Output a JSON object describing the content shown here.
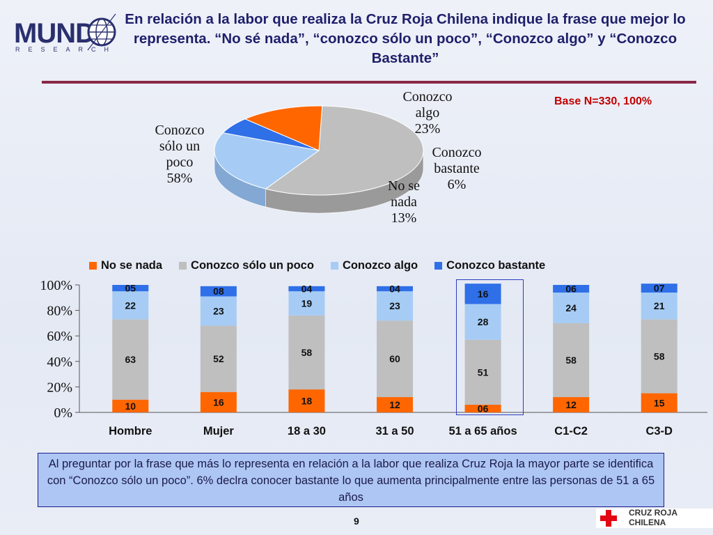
{
  "logo": {
    "word": "MUND",
    "sub": "RESEARCH"
  },
  "title": "En relación a la labor que realiza la Cruz Roja Chilena indique la frase que mejor lo representa. “No sé nada”, “conozco sólo un poco”, “Conozco algo” y “Conozco Bastante”",
  "base_text": "Base N=330, 100%",
  "footer": {
    "note": "Al preguntar por la frase que más lo representa en relación a la labor que realiza Cruz Roja la mayor parte se identifica con “Conozco sólo un poco”. 6% declra conocer bastante lo que aumenta principalmente entre las personas de 51 a 65 años",
    "page_number": "9",
    "partner_logo_text": "CRUZ ROJA CHILENA"
  },
  "colors": {
    "no_se_nada": "#ff6600",
    "solo_un_poco": "#bfbfbf",
    "algo": "#a6ccf5",
    "bastante": "#2f6fe8"
  },
  "chart_data": [
    {
      "type": "pie",
      "style": "3d",
      "slices": [
        {
          "label": "Conozco sólo un poco",
          "value": 58,
          "display": "58%"
        },
        {
          "label": "Conozco algo",
          "value": 23,
          "display": "23%"
        },
        {
          "label": "Conozco bastante",
          "value": 6,
          "display": "6%"
        },
        {
          "label": "No se nada",
          "value": 13,
          "display": "13%"
        }
      ],
      "labels": [
        {
          "text": "Conozco\nsólo un\npoco\n58%"
        },
        {
          "text": "Conozco\nalgo\n23%"
        },
        {
          "text": "Conozco\nbastante\n6%"
        },
        {
          "text": "No se\nnada\n13%"
        }
      ]
    },
    {
      "type": "bar",
      "stacked": true,
      "percent": true,
      "categories": [
        "Hombre",
        "Mujer",
        "18 a 30",
        "31 a 50",
        "51 a 65 años",
        "C1-C2",
        "C3-D"
      ],
      "series": [
        {
          "name": "No se nada",
          "values": [
            10,
            16,
            18,
            12,
            6,
            12,
            15
          ],
          "labels": [
            "10",
            "16",
            "18",
            "12",
            "06",
            "12",
            "15"
          ]
        },
        {
          "name": "Conozco sólo un poco",
          "values": [
            63,
            52,
            58,
            60,
            51,
            58,
            58
          ],
          "labels": [
            "63",
            "52",
            "58",
            "60",
            "51",
            "58",
            "58"
          ]
        },
        {
          "name": "Conozco algo",
          "values": [
            22,
            23,
            19,
            23,
            28,
            24,
            21
          ],
          "labels": [
            "22",
            "23",
            "19",
            "23",
            "28",
            "24",
            "21"
          ]
        },
        {
          "name": "Conozco bastante",
          "values": [
            5,
            8,
            4,
            4,
            16,
            6,
            7
          ],
          "labels": [
            "05",
            "08",
            "04",
            "04",
            "16",
            "06",
            "07"
          ]
        }
      ],
      "yticks": [
        "0%",
        "20%",
        "40%",
        "60%",
        "80%",
        "100%"
      ],
      "ylim": [
        0,
        100
      ],
      "legend_position": "top",
      "highlighted_category": "51 a 65 años"
    }
  ]
}
